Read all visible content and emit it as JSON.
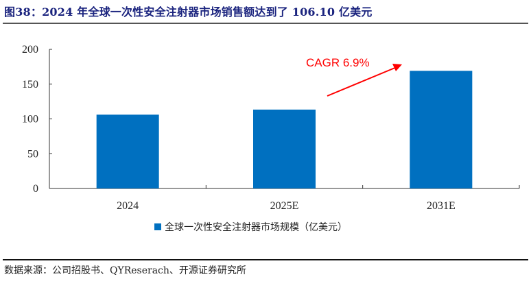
{
  "header": {
    "title": "图38：2024 年全球一次性安全注射器市场销售额达到了 106.10 亿美元"
  },
  "legend": {
    "label": "全球一次性安全注射器市场规模（亿美元）",
    "color": "#0070c0"
  },
  "annotation": {
    "text": "CAGR 6.9%",
    "color": "#ff0000"
  },
  "footer": {
    "source": "数据来源：公司招股书、QYReserach、开源证券研究所"
  },
  "chart_data": {
    "type": "bar",
    "title": "2024 年全球一次性安全注射器市场销售额达到了 106.10 亿美元",
    "categories": [
      "2024",
      "2025E",
      "2031E"
    ],
    "series": [
      {
        "name": "全球一次性安全注射器市场规模（亿美元）",
        "values": [
          106.1,
          113.4,
          169.1
        ],
        "color": "#0070c0"
      }
    ],
    "xlabel": "",
    "ylabel": "",
    "ylim": [
      0,
      200
    ],
    "yticks": [
      0,
      50,
      100,
      150,
      200
    ],
    "grid": false,
    "legend_position": "bottom",
    "annotations": [
      {
        "text": "CAGR 6.9%",
        "type": "arrow",
        "from": "2025E",
        "to": "2031E",
        "color": "#ff0000"
      }
    ]
  }
}
